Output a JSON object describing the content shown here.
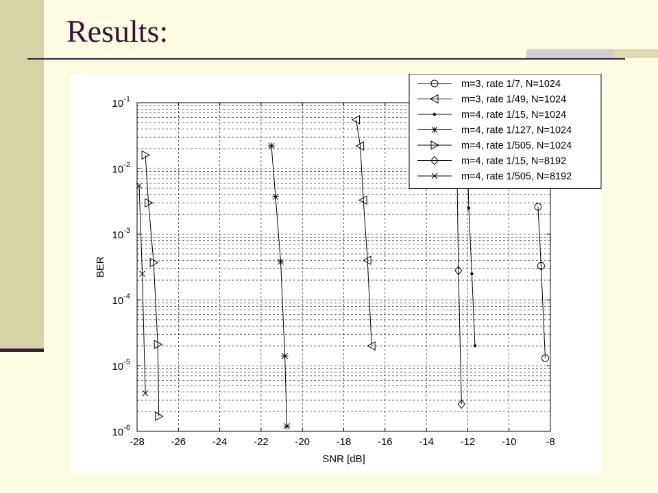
{
  "slide": {
    "title": "Results:"
  },
  "colors": {
    "background": "#fdfce2",
    "accent_bar": "#d6d3a4",
    "title_color": "#3a1238"
  },
  "chart_data": {
    "type": "line",
    "xlabel": "SNR [dB]",
    "ylabel": "BER",
    "xlim": [
      -28,
      -8
    ],
    "ylim": [
      1e-06,
      0.1
    ],
    "yscale": "log",
    "grid": true,
    "legend_position": "top-right",
    "x_ticks": [
      "-28",
      "-26",
      "-24",
      "-22",
      "-20",
      "-18",
      "-16",
      "-14",
      "-12",
      "-10",
      "-8"
    ],
    "y_ticks": [
      {
        "base": "10",
        "exp": "-1"
      },
      {
        "base": "10",
        "exp": "-2"
      },
      {
        "base": "10",
        "exp": "-3"
      },
      {
        "base": "10",
        "exp": "-4"
      },
      {
        "base": "10",
        "exp": "-5"
      },
      {
        "base": "10",
        "exp": "-6"
      }
    ],
    "series": [
      {
        "name": "m=3, rate 1/7, N=1024",
        "marker": "circle",
        "points": [
          [
            -8.6,
            0.0026
          ],
          [
            -8.45,
            0.00033
          ],
          [
            -8.25,
            1.3e-05
          ]
        ]
      },
      {
        "name": "m=3, rate 1/49, N=1024",
        "marker": "triangle-left",
        "points": [
          [
            -17.4,
            0.055
          ],
          [
            -17.2,
            0.022
          ],
          [
            -17.05,
            0.0033
          ],
          [
            -16.85,
            0.0004
          ],
          [
            -16.65,
            2e-05
          ]
        ]
      },
      {
        "name": "m=4, rate 1/15, N=1024",
        "marker": "dot",
        "points": [
          [
            -12.05,
            0.05
          ],
          [
            -11.95,
            0.0025
          ],
          [
            -11.8,
            0.00025
          ],
          [
            -11.65,
            2e-05
          ]
        ]
      },
      {
        "name": "m=4, rate 1/127, N=1024",
        "marker": "star",
        "points": [
          [
            -21.5,
            0.022
          ],
          [
            -21.3,
            0.0037
          ],
          [
            -21.05,
            0.00038
          ],
          [
            -20.85,
            1.4e-05
          ],
          [
            -20.75,
            1.2e-06
          ]
        ]
      },
      {
        "name": "m=4, rate 1/505, N=1024",
        "marker": "triangle-right",
        "points": [
          [
            -27.6,
            0.016
          ],
          [
            -27.45,
            0.003
          ],
          [
            -27.2,
            0.00037
          ],
          [
            -27.0,
            2.1e-05
          ],
          [
            -26.95,
            1.7e-06
          ]
        ]
      },
      {
        "name": "m=4, rate 1/15, N=8192",
        "marker": "diamond",
        "points": [
          [
            -12.55,
            0.05
          ],
          [
            -12.45,
            0.00028
          ],
          [
            -12.3,
            2.6e-06
          ]
        ]
      },
      {
        "name": "m=4, rate 1/505, N=8192",
        "marker": "x",
        "points": [
          [
            -27.9,
            0.0055
          ],
          [
            -27.75,
            0.00025
          ],
          [
            -27.6,
            3.8e-06
          ]
        ]
      }
    ]
  }
}
